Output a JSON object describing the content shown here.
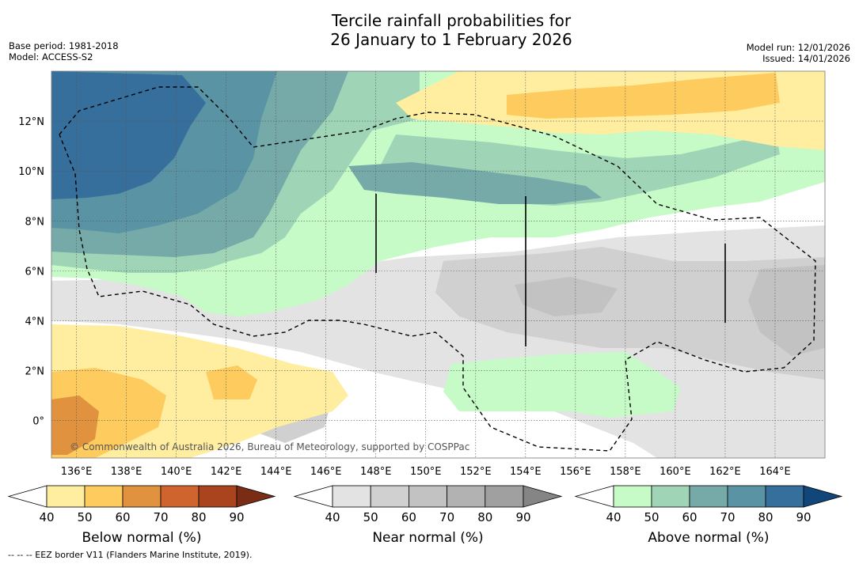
{
  "header": {
    "title_line1": "Tercile rainfall probabilities for",
    "title_line2": "26 January to 1 February 2026",
    "base_period": "Base period: 1981-2018",
    "model": "Model: ACCESS-S2",
    "model_run": "Model run: 12/01/2026",
    "issued": "Issued: 14/01/2026"
  },
  "chart_data": {
    "type": "heatmap",
    "title": "Tercile rainfall probabilities for 26 January to 1 February 2026",
    "x_axis": {
      "range_deg_e": [
        135,
        166
      ],
      "ticks": [
        136,
        138,
        140,
        142,
        144,
        146,
        148,
        150,
        152,
        154,
        156,
        158,
        160,
        162,
        164
      ],
      "tick_labels": [
        "136°E",
        "138°E",
        "140°E",
        "142°E",
        "144°E",
        "146°E",
        "148°E",
        "150°E",
        "152°E",
        "154°E",
        "156°E",
        "158°E",
        "160°E",
        "162°E",
        "164°E"
      ]
    },
    "y_axis": {
      "range_deg_n": [
        -1.5,
        14
      ],
      "ticks": [
        0,
        2,
        4,
        6,
        8,
        10,
        12
      ],
      "tick_labels": [
        "0°",
        "2°N",
        "4°N",
        "6°N",
        "8°N",
        "10°N",
        "12°N"
      ]
    },
    "grid": true,
    "categories": [
      {
        "name": "Below normal",
        "label": "Below normal (%)",
        "bins": [
          40,
          50,
          60,
          70,
          80,
          90
        ],
        "bin_labels": [
          "40",
          "50",
          "60",
          "70",
          "80",
          "90"
        ],
        "colors": [
          "#ffeda0",
          "#fecb5f",
          "#e0923f",
          "#d0642f",
          "#a9441e",
          "#7a2d14"
        ]
      },
      {
        "name": "Near normal",
        "label": "Near normal (%)",
        "bins": [
          40,
          50,
          60,
          70,
          80,
          90
        ],
        "bin_labels": [
          "40",
          "50",
          "60",
          "70",
          "80",
          "90"
        ],
        "colors": [
          "#e3e3e3",
          "#d0d0d0",
          "#c2c2c2",
          "#b2b2b2",
          "#a0a0a0",
          "#858585"
        ]
      },
      {
        "name": "Above normal",
        "label": "Above normal (%)",
        "bins": [
          40,
          50,
          60,
          70,
          80,
          90
        ],
        "bin_labels": [
          "40",
          "50",
          "60",
          "70",
          "80",
          "90"
        ],
        "colors": [
          "#c6fbc7",
          "#9fd4b6",
          "#75aaa8",
          "#5a94a4",
          "#376f9c",
          "#11467a"
        ]
      }
    ],
    "regions": [
      {
        "category": "Above normal",
        "level": "70-80",
        "area": "north-west, 135-144°E 8-14°N"
      },
      {
        "category": "Above normal",
        "level": "60-70",
        "area": "north, 135-157°E 6-13°N"
      },
      {
        "category": "Above normal",
        "level": "40-50",
        "area": "band 147-163°E 8-12°N and south-east 151-160°E 0-3°N"
      },
      {
        "category": "Below normal",
        "level": "50-60",
        "area": "north-east 153-163°E 12-14°N"
      },
      {
        "category": "Below normal",
        "level": "60-70",
        "area": "south-west corner 135-136°E 0°"
      },
      {
        "category": "Near normal",
        "level": "40-60",
        "area": "central-east 144-166°E 0-7°N"
      }
    ],
    "overlay": "EEZ border (dashed)",
    "copyright": "© Commonwealth of Australia 2026, Bureau of Meteorology, supported by COSPPac"
  },
  "footnote": "--  --  -- EEZ border V11 (Flanders Marine Institute, 2019)."
}
